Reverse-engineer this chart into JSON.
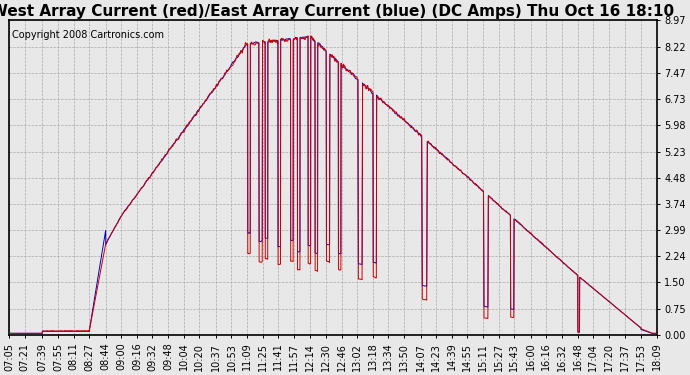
{
  "title": "West Array Current (red)/East Array Current (blue) (DC Amps) Thu Oct 16 18:10",
  "copyright": "Copyright 2008 Cartronics.com",
  "ylabel_ticks": [
    0.0,
    0.75,
    1.5,
    2.24,
    2.99,
    3.74,
    4.48,
    5.23,
    5.98,
    6.73,
    7.47,
    8.22,
    8.97
  ],
  "ymin": 0.0,
  "ymax": 8.97,
  "red_color": "#cc0000",
  "blue_color": "#0000cc",
  "background_color": "#e8e8e8",
  "grid_color": "#aaaaaa",
  "title_fontsize": 11,
  "copyright_fontsize": 7,
  "tick_fontsize": 7,
  "x_tick_labels": [
    "07:05",
    "07:21",
    "07:39",
    "07:55",
    "08:11",
    "08:27",
    "08:44",
    "09:00",
    "09:16",
    "09:32",
    "09:48",
    "10:04",
    "10:20",
    "10:37",
    "10:53",
    "11:09",
    "11:25",
    "11:41",
    "11:57",
    "12:14",
    "12:30",
    "12:46",
    "13:02",
    "13:18",
    "13:34",
    "13:50",
    "14:07",
    "14:23",
    "14:39",
    "14:55",
    "15:11",
    "15:27",
    "15:43",
    "16:00",
    "16:16",
    "16:32",
    "16:48",
    "17:04",
    "17:20",
    "17:37",
    "17:53",
    "18:09"
  ]
}
